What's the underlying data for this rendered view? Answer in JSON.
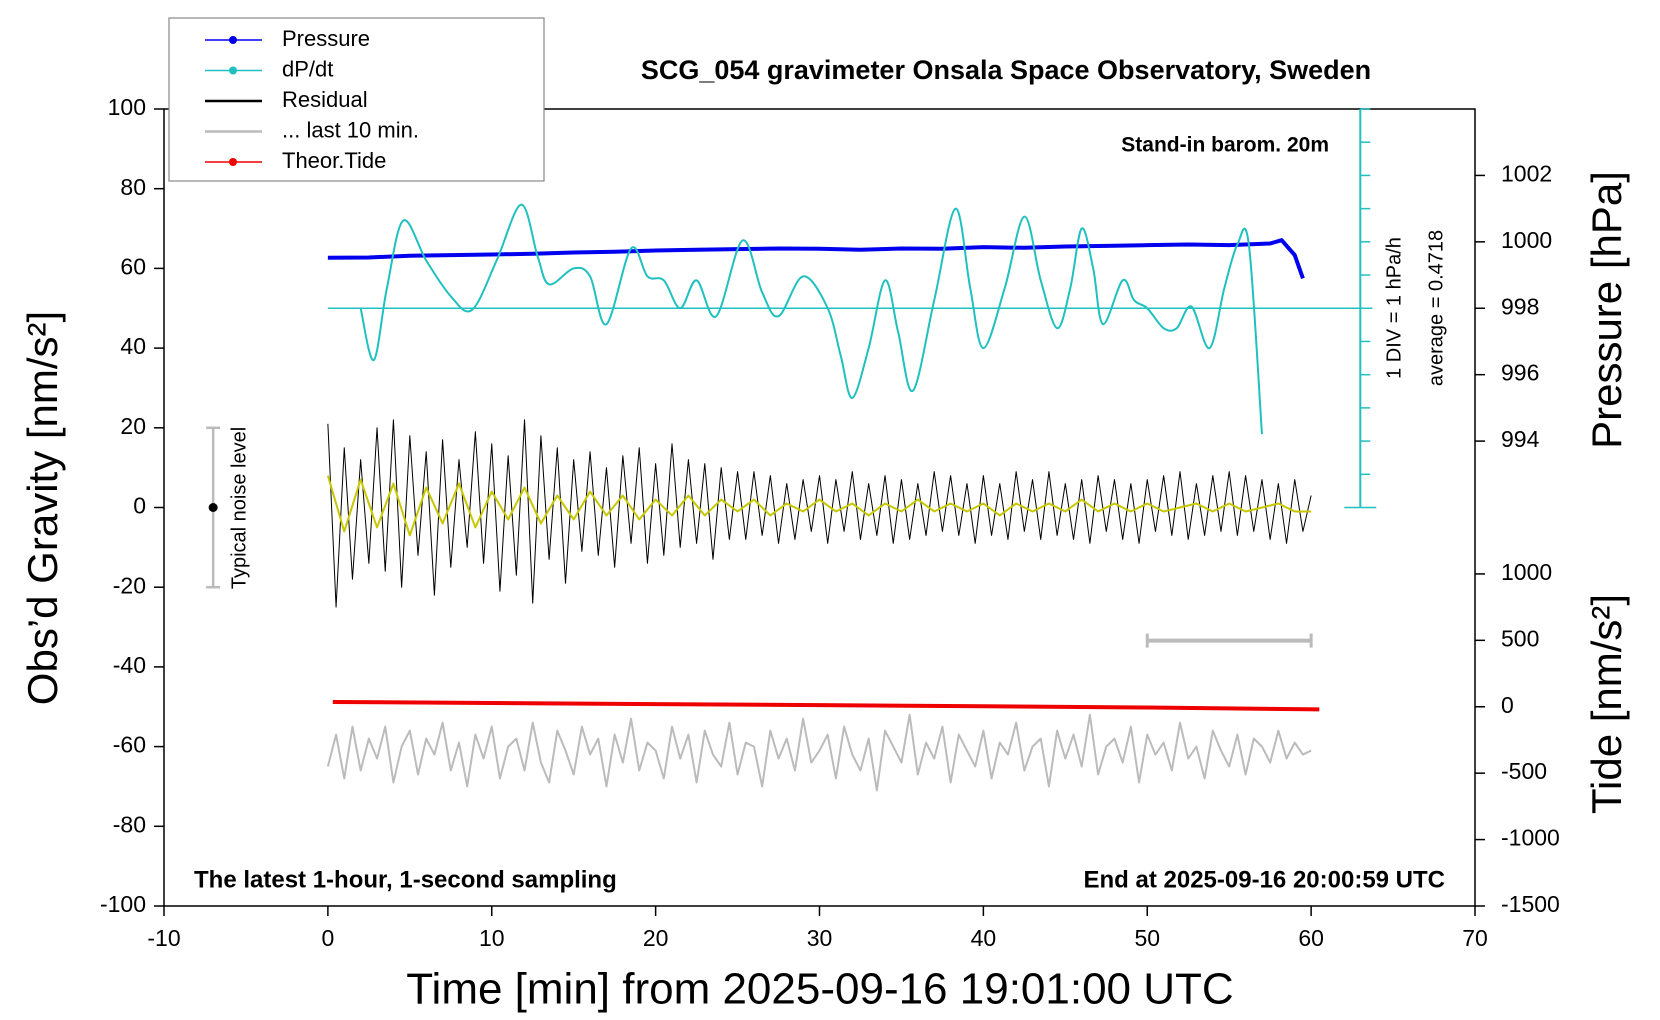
{
  "chart_data": {
    "type": "line",
    "title": "SCG_054 gravimeter Onsala Space Observatory, Sweden",
    "xlabel": "Time [min] from 2025-09-16 19:01:00 UTC",
    "ylabel": "Obs’d Gravity [nm/s²]",
    "y2label": "Pressure [hPa]",
    "y3label": "Tide [nm/s²]",
    "xlim": [
      -10,
      70
    ],
    "xticks": [
      -10,
      0,
      10,
      20,
      30,
      40,
      50,
      60,
      70
    ],
    "ylim": [
      -100,
      100
    ],
    "yticks": [
      -100,
      -80,
      -60,
      -40,
      -20,
      0,
      20,
      40,
      60,
      80,
      100
    ],
    "y2lim": [
      980,
      1004
    ],
    "y2ticks": [
      994,
      996,
      998,
      1000,
      1002
    ],
    "y3lim": [
      -1500,
      4500
    ],
    "y3ticks": [
      -1500,
      -1000,
      -500,
      0,
      500,
      1000
    ],
    "annotations": {
      "station": "Stand-in barom. 20m",
      "sampling": "The latest 1-hour, 1-second sampling",
      "end": "End at 2025-09-16 20:00:59 UTC"
    },
    "noise_level": {
      "label": "Typical noise level",
      "x": -7,
      "low": -20,
      "mid": 0,
      "high": 20
    },
    "interval_bar": {
      "x": [
        50,
        60
      ],
      "y": -33.4,
      "color": "#bbbbbb"
    },
    "dpdt_axis": {
      "x": 63,
      "color": "#20c0c0",
      "div_label": "1 DIV = 1 hPa/h",
      "average_label": "average = 0.4718",
      "average_level": 50,
      "ticks": [
        0,
        8.33,
        16.67,
        25,
        33.33,
        41.67,
        50,
        58.33,
        66.67,
        75,
        83.33,
        91.67,
        100
      ]
    },
    "legend": "upper left",
    "x": [
      0,
      0.5,
      1,
      1.5,
      2,
      2.5,
      3,
      3.5,
      4,
      4.5,
      5,
      5.5,
      6,
      6.5,
      7,
      7.5,
      8,
      8.5,
      9,
      9.5,
      10,
      10.5,
      11,
      11.5,
      12,
      12.5,
      13,
      13.5,
      14,
      14.5,
      15,
      15.5,
      16,
      16.5,
      17,
      17.5,
      18,
      18.5,
      19,
      19.5,
      20,
      20.5,
      21,
      21.5,
      22,
      22.5,
      23,
      23.5,
      24,
      24.5,
      25,
      25.5,
      26,
      26.5,
      27,
      27.5,
      28,
      28.5,
      29,
      29.5,
      30,
      30.5,
      31,
      31.5,
      32,
      32.5,
      33,
      33.5,
      34,
      34.5,
      35,
      35.5,
      36,
      36.5,
      37,
      37.5,
      38,
      38.5,
      39,
      39.5,
      40,
      40.5,
      41,
      41.5,
      42,
      42.5,
      43,
      43.5,
      44,
      44.5,
      45,
      45.5,
      46,
      46.5,
      47,
      47.5,
      48,
      48.5,
      49,
      49.5,
      50,
      50.5,
      51,
      51.5,
      52,
      52.5,
      53,
      53.5,
      54,
      54.5,
      55,
      55.5,
      56,
      56.5,
      57,
      57.5,
      58,
      58.5,
      59,
      59.5,
      60
    ],
    "series": [
      {
        "name": "Pressure",
        "color": "#0000ee",
        "axis": "y2",
        "width": 4,
        "markers": true,
        "x": [
          0,
          2.5,
          5,
          7.5,
          10,
          12.5,
          15,
          17.5,
          20,
          22.5,
          25,
          27.5,
          30,
          32.5,
          35,
          37.5,
          40,
          42.5,
          45,
          47.5,
          50,
          52.5,
          55,
          57.5,
          58.2,
          59,
          59.5
        ],
        "values": [
          999.52,
          999.53,
          999.58,
          999.6,
          999.62,
          999.64,
          999.68,
          999.7,
          999.74,
          999.76,
          999.78,
          999.8,
          999.79,
          999.76,
          999.8,
          999.79,
          999.84,
          999.82,
          999.86,
          999.88,
          999.9,
          999.92,
          999.9,
          999.95,
          1000.05,
          999.6,
          998.9
        ]
      },
      {
        "name": "dP/dt",
        "color": "#20c0c0",
        "width": 2,
        "markers": true,
        "smooth": true,
        "x": [
          2,
          2.8,
          3.6,
          4.6,
          6,
          7.5,
          8.8,
          10.3,
          11.8,
          12.8,
          13.5,
          15,
          16,
          17,
          18.5,
          19.5,
          20.5,
          21.5,
          22.5,
          23.7,
          25.3,
          26.5,
          27.5,
          29,
          30.5,
          31.3,
          32,
          33,
          34,
          34.8,
          35.7,
          37,
          38.3,
          39.2,
          40,
          41.3,
          42.5,
          43.5,
          44.5,
          45.3,
          46,
          46.7,
          47.3,
          48.5,
          49.2,
          50,
          51,
          51.8,
          52.7,
          53.8,
          54.7,
          55.5,
          56.2,
          57
        ],
        "values": [
          50,
          37,
          55,
          72,
          62,
          53,
          49.6,
          62,
          76,
          63,
          56,
          60,
          58,
          46,
          65,
          58,
          57,
          50,
          57,
          48,
          67,
          54,
          48,
          58,
          50,
          38,
          27.5,
          40,
          57,
          44,
          29.3,
          52,
          75,
          55,
          40,
          55,
          73,
          57,
          45,
          55,
          70,
          60,
          46,
          57,
          52,
          50,
          45,
          45,
          50.4,
          40,
          55,
          66,
          66,
          18.4
        ]
      },
      {
        "name": "Residual",
        "color": "#000000",
        "width": 1,
        "values": [
          21,
          -25,
          15,
          -18,
          12,
          -14,
          20,
          -16,
          22,
          -20,
          18,
          -12,
          14,
          -22,
          17,
          -15,
          12,
          -10,
          19,
          -14,
          16,
          -21,
          13,
          -17,
          22,
          -24,
          18,
          -13,
          15,
          -19,
          12,
          -11,
          14,
          -12,
          10,
          -15,
          13,
          -9,
          15,
          -14,
          11,
          -12,
          16,
          -10,
          12,
          -9,
          11,
          -13,
          10,
          -8,
          9,
          -8,
          9,
          -7,
          8,
          -9,
          6,
          -8,
          7,
          -6,
          8,
          -9,
          7,
          -6,
          9,
          -8,
          6,
          -7,
          8,
          -9,
          7,
          -8,
          6,
          -7,
          9,
          -6,
          8,
          -7,
          6,
          -9,
          8,
          -7,
          6,
          -8,
          9,
          -6,
          7,
          -8,
          9,
          -7,
          6,
          -8,
          7,
          -9,
          8,
          -6,
          7,
          -8,
          6,
          -9,
          7,
          -6,
          8,
          -7,
          9,
          -8,
          6,
          -7,
          8,
          -6,
          9,
          -7,
          8,
          -6,
          7,
          -8,
          6,
          -9,
          7,
          -6,
          3
        ]
      },
      {
        "name": "... last 10 min.",
        "color": "#bbbbbb",
        "width": 2,
        "values": [
          -65,
          -57,
          -68,
          -55,
          -66,
          -58,
          -63,
          -55,
          -69,
          -60,
          -56,
          -67,
          -58,
          -62,
          -54,
          -66,
          -59,
          -70,
          -57,
          -63,
          -55,
          -68,
          -60,
          -58,
          -66,
          -54,
          -64,
          -69,
          -56,
          -61,
          -67,
          -55,
          -62,
          -58,
          -70,
          -57,
          -64,
          -53,
          -66,
          -59,
          -61,
          -68,
          -55,
          -63,
          -57,
          -69,
          -56,
          -62,
          -65,
          -54,
          -67,
          -59,
          -60,
          -70,
          -56,
          -63,
          -58,
          -66,
          -53,
          -64,
          -61,
          -57,
          -68,
          -55,
          -62,
          -66,
          -58,
          -71,
          -56,
          -60,
          -64,
          -52,
          -67,
          -59,
          -63,
          -55,
          -69,
          -57,
          -61,
          -65,
          -56,
          -68,
          -59,
          -62,
          -54,
          -66,
          -60,
          -58,
          -70,
          -56,
          -63,
          -57,
          -65,
          -52,
          -67,
          -60,
          -58,
          -64,
          -55,
          -69,
          -57,
          -62,
          -59,
          -66,
          -54,
          -63,
          -60,
          -68,
          -56,
          -61,
          -65,
          -57,
          -67,
          -58,
          -60,
          -64,
          -56,
          -63,
          -59,
          -62,
          -61
        ]
      },
      {
        "name": "Theor.Tide",
        "color": "#ee0000",
        "axis": "y3",
        "width": 4,
        "markers": true,
        "x": [
          0.3,
          10,
          20,
          30,
          40,
          50,
          60.5
        ],
        "values": [
          36,
          28,
          20,
          12,
          4,
          -6,
          -20
        ]
      },
      {
        "color": "#c8c800",
        "width": 2,
        "x": [
          0,
          1,
          2,
          3,
          4,
          5,
          6,
          7,
          8,
          9,
          10,
          11,
          12,
          13,
          14,
          15,
          16,
          17,
          18,
          19,
          20,
          21,
          22,
          23,
          24,
          25,
          26,
          27,
          28,
          29,
          30,
          31,
          32,
          33,
          34,
          35,
          36,
          37,
          38,
          39,
          40,
          41,
          42,
          43,
          44,
          45,
          46,
          47,
          48,
          49,
          50,
          51,
          52,
          53,
          54,
          55,
          56,
          57,
          58,
          59,
          60
        ],
        "values": [
          8,
          -6,
          7,
          -5,
          6,
          -7,
          5,
          -4,
          6,
          -5,
          4,
          -3,
          5,
          -4,
          3,
          -3,
          4,
          -2,
          3,
          -3,
          2,
          -2,
          3,
          -2,
          2,
          -1,
          2,
          -2,
          1,
          -1,
          2,
          -1,
          1,
          -2,
          1,
          -1,
          2,
          -1,
          1,
          -1,
          1,
          -2,
          1,
          -1,
          1,
          -1,
          2,
          -1,
          1,
          -1,
          1,
          -1,
          0,
          1,
          -1,
          1,
          -1,
          0,
          1,
          -1,
          -1
        ]
      }
    ]
  }
}
